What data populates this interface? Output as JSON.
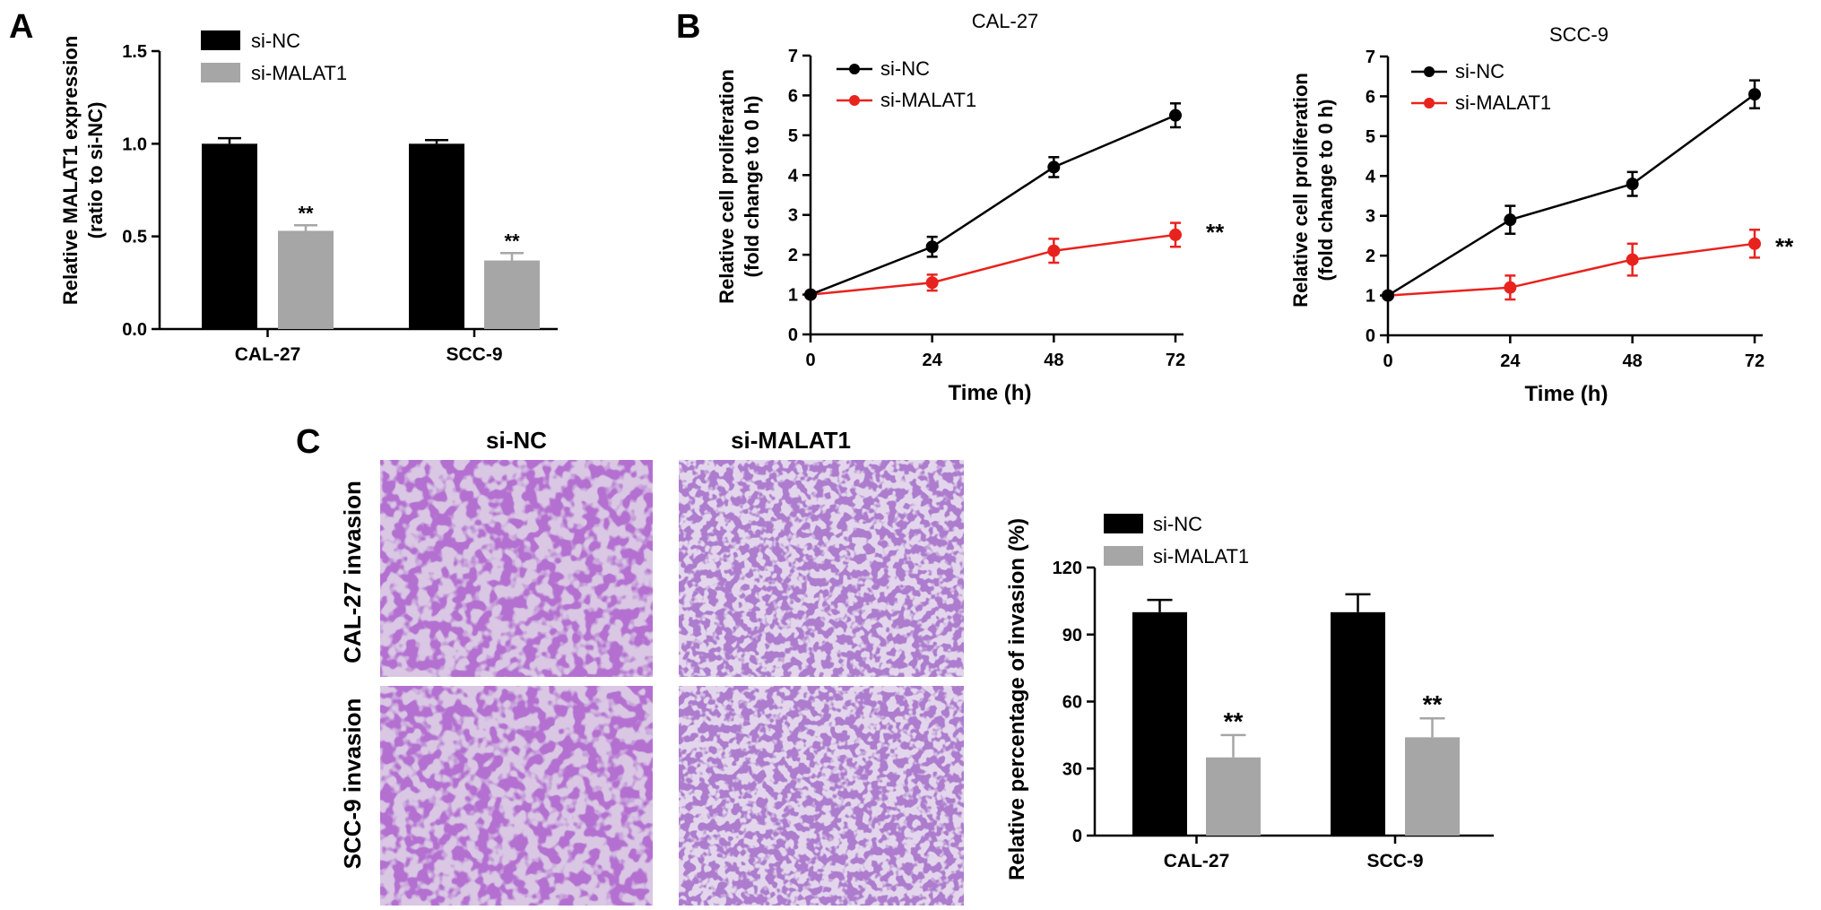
{
  "panel_labels": {
    "a": "A",
    "b": "B",
    "c": "C"
  },
  "colors": {
    "si_nc": "#000000",
    "si_malat1_bar": "#a6a6a6",
    "si_malat1_line": "#e8231e",
    "axis": "#000000",
    "stain": "#7a2fa8"
  },
  "panel_c": {
    "col_headers": [
      "si-NC",
      "si-MALAT1"
    ],
    "row_labels": [
      "CAL-27 invasion",
      "SCC-9 invasion"
    ]
  },
  "chart_data": [
    {
      "id": "A",
      "type": "bar",
      "title": "",
      "ylabel": "Relative MALAT1 expression (ratio to si-NC)",
      "ylabel_lines": [
        "Relative MALAT1 expression",
        "(ratio to si-NC)"
      ],
      "ylim": [
        0,
        1.5
      ],
      "yticks": [
        "0.0",
        "0.5",
        "1.0",
        "1.5"
      ],
      "ytick_values": [
        0,
        0.5,
        1.0,
        1.5
      ],
      "categories": [
        "CAL-27",
        "SCC-9"
      ],
      "legend": {
        "position": "top-left",
        "entries": [
          "si-NC",
          "si-MALAT1"
        ]
      },
      "series": [
        {
          "name": "si-NC",
          "values": [
            1.0,
            1.0
          ],
          "errors": [
            0.03,
            0.02
          ]
        },
        {
          "name": "si-MALAT1",
          "values": [
            0.53,
            0.37
          ],
          "errors": [
            0.03,
            0.04
          ]
        }
      ],
      "annotations": [
        "**",
        "**"
      ]
    },
    {
      "id": "B1",
      "type": "line",
      "title": "CAL-27",
      "xlabel": "Time (h)",
      "ylabel": "Relative cell proliferation (fold change to 0 h)",
      "ylabel_lines": [
        "Relative cell proliferation",
        "(fold change to 0 h)"
      ],
      "x": [
        0,
        24,
        48,
        72
      ],
      "xticks": [
        "0",
        "24",
        "48",
        "72"
      ],
      "ylim": [
        0,
        7
      ],
      "yticks": [
        "0",
        "1",
        "2",
        "3",
        "4",
        "5",
        "6",
        "7"
      ],
      "legend": {
        "position": "top-left",
        "entries": [
          "si-NC",
          "si-MALAT1"
        ]
      },
      "series": [
        {
          "name": "si-NC",
          "values": [
            1.0,
            2.2,
            4.2,
            5.5
          ],
          "errors": [
            0.05,
            0.25,
            0.25,
            0.3
          ]
        },
        {
          "name": "si-MALAT1",
          "values": [
            1.0,
            1.3,
            2.1,
            2.5
          ],
          "errors": [
            0.05,
            0.2,
            0.3,
            0.3
          ]
        }
      ],
      "annotation": "**"
    },
    {
      "id": "B2",
      "type": "line",
      "title": "SCC-9",
      "xlabel": "Time (h)",
      "ylabel": "Relative cell proliferation (fold change to 0 h)",
      "ylabel_lines": [
        "Relative cell proliferation",
        "(fold change to 0 h)"
      ],
      "x": [
        0,
        24,
        48,
        72
      ],
      "xticks": [
        "0",
        "24",
        "48",
        "72"
      ],
      "ylim": [
        0,
        7
      ],
      "yticks": [
        "0",
        "1",
        "2",
        "3",
        "4",
        "5",
        "6",
        "7"
      ],
      "legend": {
        "position": "top-left",
        "entries": [
          "si-NC",
          "si-MALAT1"
        ]
      },
      "series": [
        {
          "name": "si-NC",
          "values": [
            1.0,
            2.9,
            3.8,
            6.05
          ],
          "errors": [
            0.05,
            0.35,
            0.3,
            0.35
          ]
        },
        {
          "name": "si-MALAT1",
          "values": [
            1.0,
            1.2,
            1.9,
            2.3
          ],
          "errors": [
            0.05,
            0.3,
            0.4,
            0.35
          ]
        }
      ],
      "annotation": "**"
    },
    {
      "id": "C",
      "type": "bar",
      "title": "",
      "ylabel": "Relative percentage of invasion (%)",
      "ylim": [
        0,
        120
      ],
      "yticks": [
        "0",
        "30",
        "60",
        "90",
        "120"
      ],
      "ytick_values": [
        0,
        30,
        60,
        90,
        120
      ],
      "categories": [
        "CAL-27",
        "SCC-9"
      ],
      "legend": {
        "position": "top-left",
        "entries": [
          "si-NC",
          "si-MALAT1"
        ]
      },
      "series": [
        {
          "name": "si-NC",
          "values": [
            100,
            100
          ],
          "errors": [
            5.5,
            8
          ]
        },
        {
          "name": "si-MALAT1",
          "values": [
            35,
            44
          ],
          "errors": [
            10,
            8.5
          ]
        }
      ],
      "annotations": [
        "**",
        "**"
      ]
    }
  ]
}
